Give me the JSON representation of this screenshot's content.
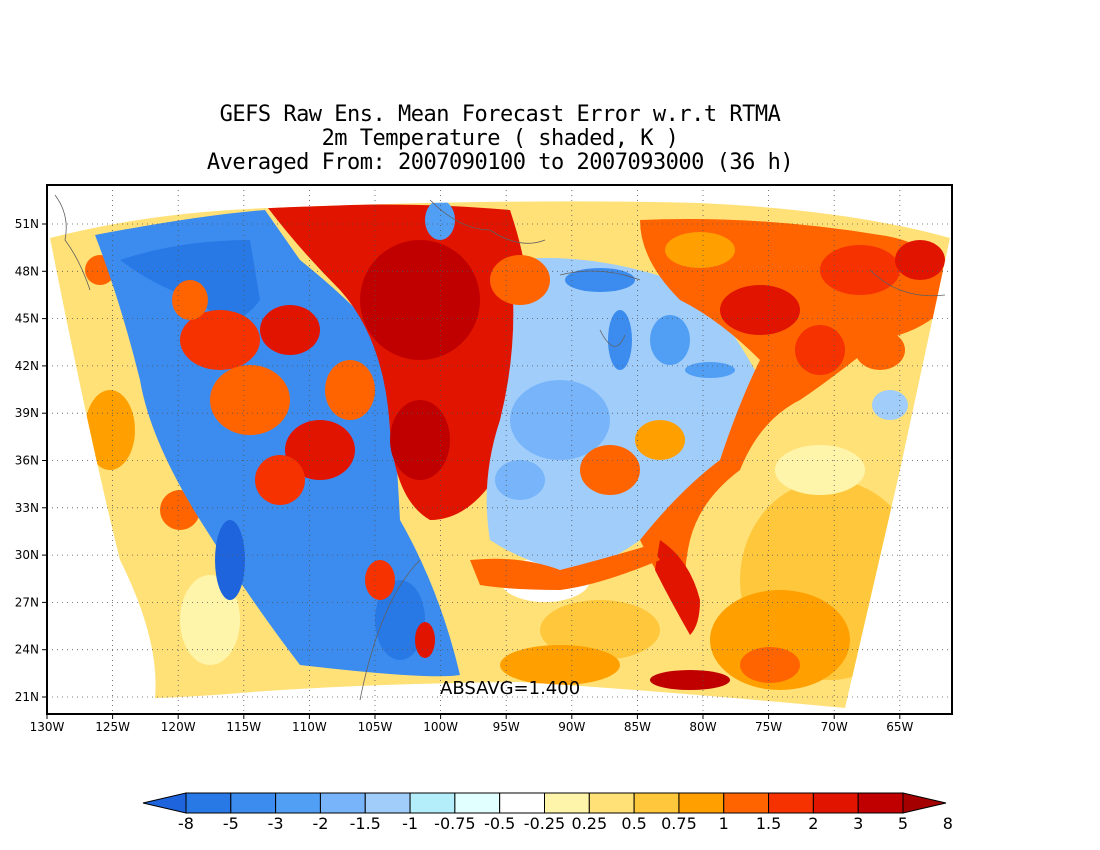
{
  "title": {
    "line1": "GEFS Raw Ens. Mean Forecast Error w.r.t RTMA",
    "line2": "2m Temperature ( shaded, K )",
    "line3": "Averaged From: 2007090100 to 2007093000 (36 h)"
  },
  "annotation": "ABSAVG=1.400",
  "map": {
    "lon_ticks": [
      "130W",
      "125W",
      "120W",
      "115W",
      "110W",
      "105W",
      "100W",
      "95W",
      "90W",
      "85W",
      "80W",
      "75W",
      "70W",
      "65W"
    ],
    "lat_ticks": [
      "51N",
      "48N",
      "45N",
      "42N",
      "39N",
      "36N",
      "33N",
      "30N",
      "27N",
      "24N",
      "21N"
    ],
    "grid": "dotted",
    "coastlines": true
  },
  "colorbar": {
    "levels": [
      "-8",
      "-5",
      "-3",
      "-2",
      "-1.5",
      "-1",
      "-0.75",
      "-0.5",
      "-0.25",
      "0.25",
      "0.5",
      "0.75",
      "1",
      "1.5",
      "2",
      "3",
      "5",
      "8"
    ],
    "colors": [
      "#1e64dc",
      "#2878e6",
      "#3c8cf0",
      "#509ff5",
      "#78b4fa",
      "#a0cdfa",
      "#b4eefa",
      "#e1ffff",
      "#ffffff",
      "#fff5aa",
      "#ffe178",
      "#ffc83c",
      "#ffa000",
      "#ff6400",
      "#f53200",
      "#e11400",
      "#c00000",
      "#a50000"
    ]
  }
}
